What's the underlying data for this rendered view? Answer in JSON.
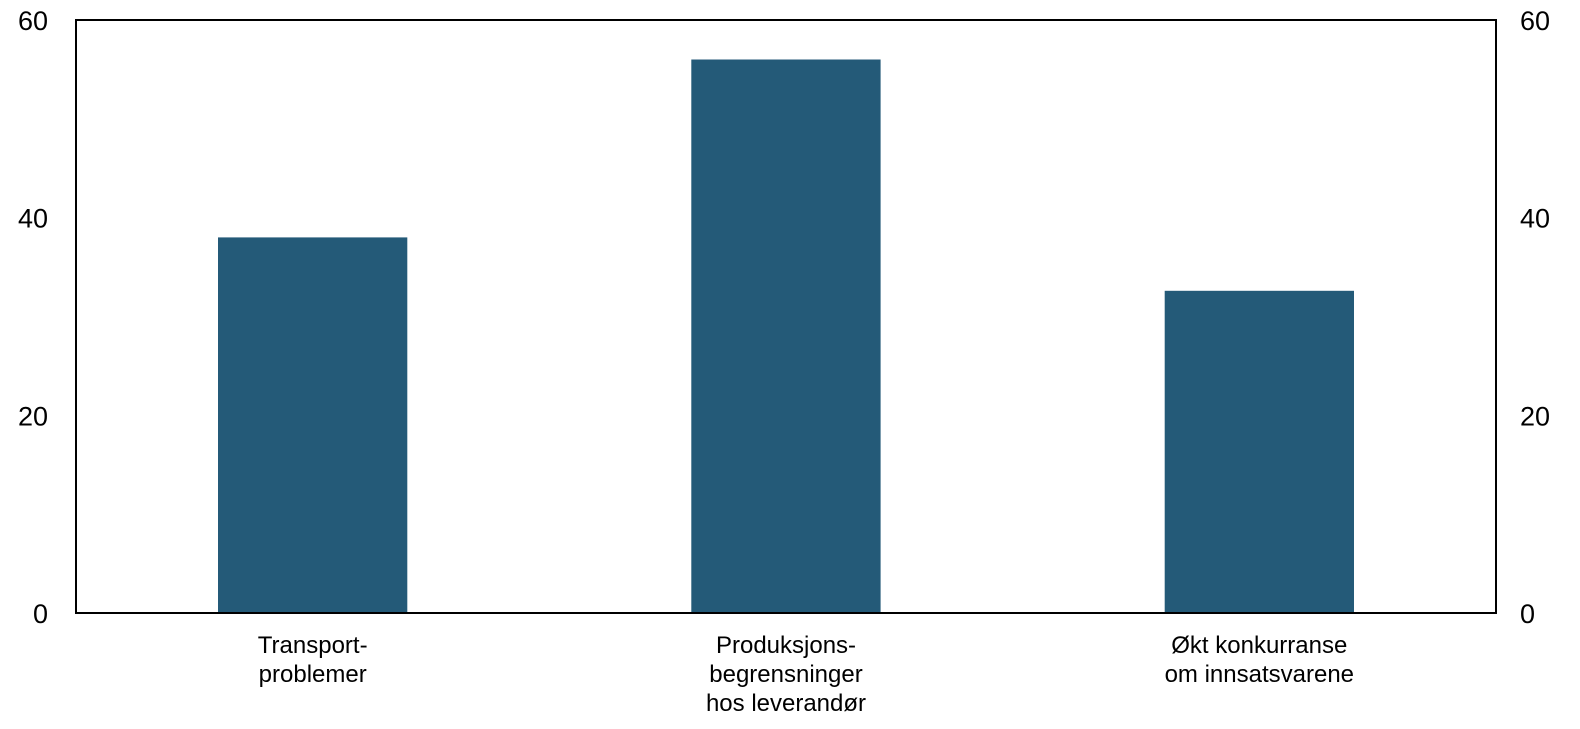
{
  "chart_data": {
    "type": "bar",
    "categories": [
      [
        "Transport-",
        "problemer"
      ],
      [
        "Produksjons-",
        "begrensninger",
        "hos leverandør"
      ],
      [
        "Økt konkurranse",
        "om innsatsvarene"
      ]
    ],
    "values": [
      38,
      56,
      32.6
    ],
    "ylim": [
      0,
      60
    ],
    "yticks": [
      0,
      20,
      40,
      60
    ],
    "ytick_labels": [
      "0",
      "20",
      "40",
      "60"
    ],
    "secondary_y_axis": true,
    "grid": false,
    "legend": "none",
    "bar_color": "#245a78",
    "axis_color": "#000000"
  }
}
